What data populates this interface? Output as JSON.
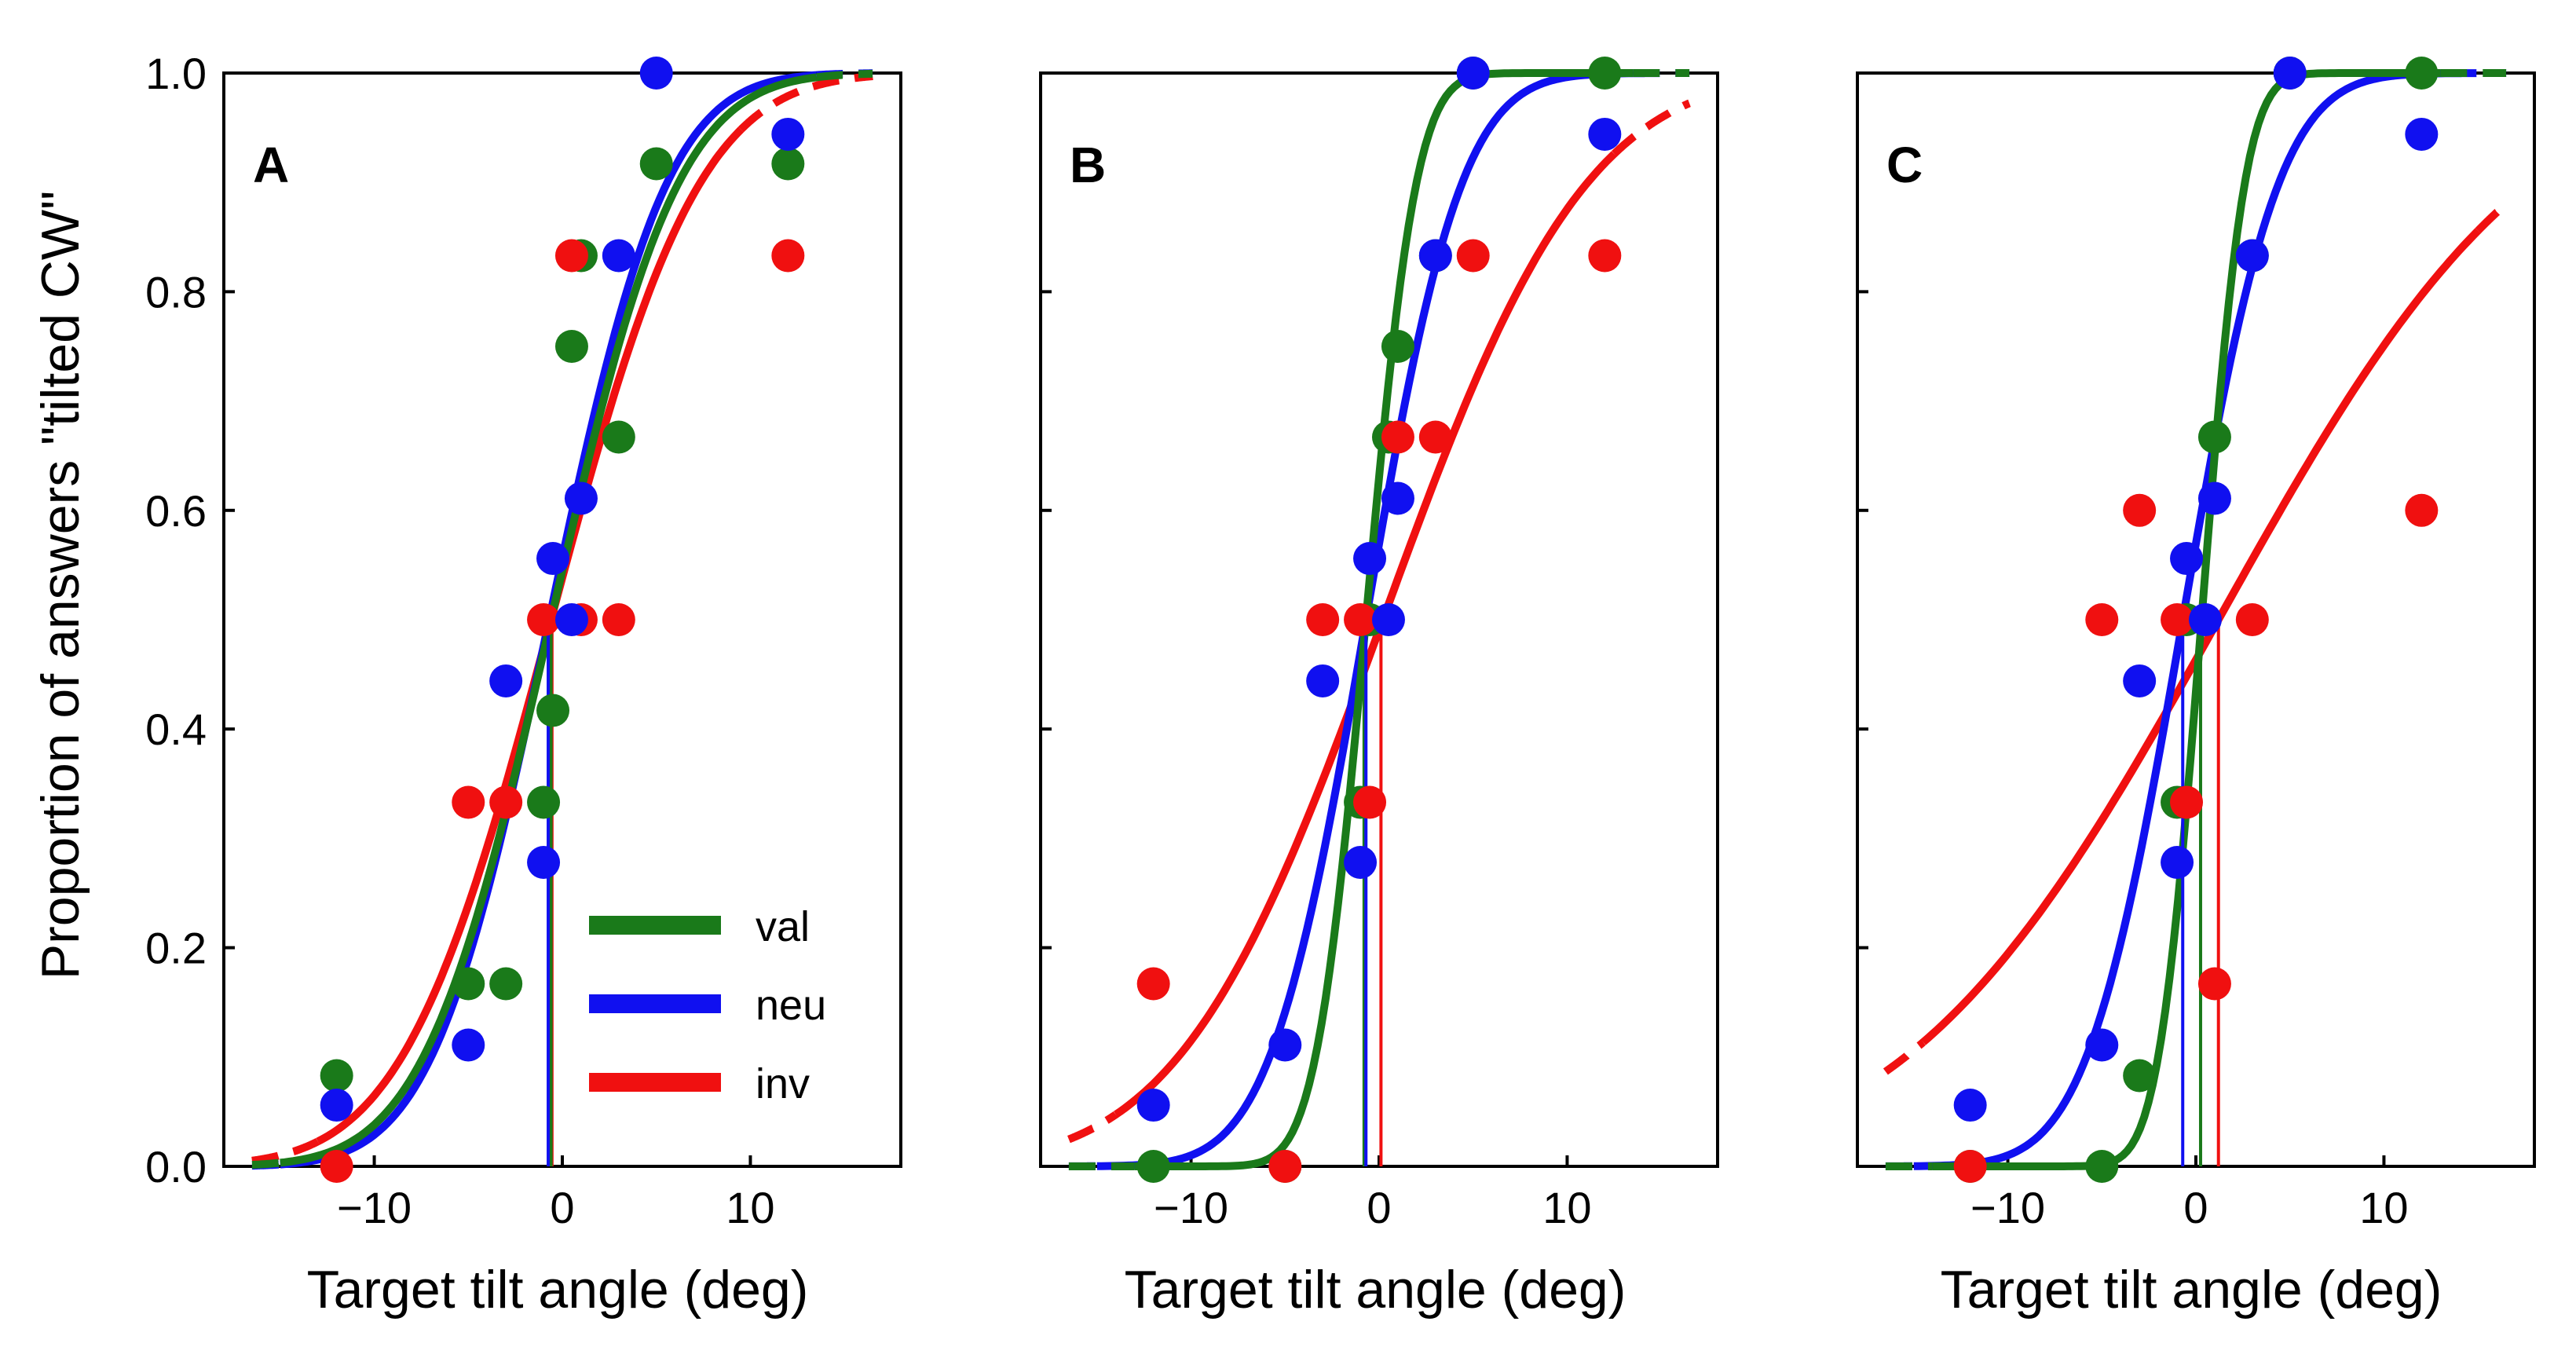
{
  "chart_data": {
    "type": "scatter",
    "ylabel": "Proportion of answers \"tilted CW\"",
    "xlabel": "Target tilt angle (deg)",
    "xlim": [
      -18,
      18
    ],
    "ylim": [
      0.0,
      1.0
    ],
    "x_ticks": [
      -10,
      0,
      10
    ],
    "x_tick_labels": [
      "−10",
      "0",
      "10"
    ],
    "y_ticks": [
      0.0,
      0.2,
      0.4,
      0.6,
      0.8,
      1.0
    ],
    "y_tick_labels": [
      "0.0",
      "0.2",
      "0.4",
      "0.6",
      "0.8",
      "1.0"
    ],
    "grid": false,
    "legend": {
      "placement": "lower-right",
      "panel": "A",
      "entries": [
        {
          "label": "val",
          "color": "#1a7a1a"
        },
        {
          "label": "neu",
          "color": "#1010f0"
        },
        {
          "label": "inv",
          "color": "#f01010"
        }
      ]
    },
    "colors": {
      "val": "#1a7a1a",
      "neu": "#1010f0",
      "inv": "#f01010"
    },
    "curve_range": [
      -16.5,
      16.5
    ],
    "panels": [
      {
        "letter": "A",
        "series": [
          {
            "name": "val",
            "points": [
              [
                -12,
                0.083
              ],
              [
                -5,
                0.167
              ],
              [
                -3,
                0.167
              ],
              [
                -1,
                0.333
              ],
              [
                -0.5,
                0.417
              ],
              [
                0.5,
                0.75
              ],
              [
                1,
                0.833
              ],
              [
                3,
                0.667
              ],
              [
                5,
                0.917
              ],
              [
                12,
                0.917
              ]
            ],
            "fit": {
              "mu": -0.6,
              "sigma": 5.3,
              "solid_range": [
                -15,
                13.5
              ]
            }
          },
          {
            "name": "neu",
            "points": [
              [
                -12,
                0.056
              ],
              [
                -5,
                0.111
              ],
              [
                -3,
                0.444
              ],
              [
                -1,
                0.278
              ],
              [
                -0.5,
                0.556
              ],
              [
                0.5,
                0.5
              ],
              [
                1,
                0.611
              ],
              [
                3,
                0.833
              ],
              [
                5,
                1.0
              ],
              [
                12,
                0.944
              ]
            ],
            "fit": {
              "mu": -0.7,
              "sigma": 4.9,
              "solid_range": [
                -15,
                13.5
              ]
            }
          },
          {
            "name": "inv",
            "points": [
              [
                -12,
                0.0
              ],
              [
                -5,
                0.333
              ],
              [
                -3,
                0.333
              ],
              [
                -1,
                0.5
              ],
              [
                0.5,
                0.833
              ],
              [
                1,
                0.5
              ],
              [
                3,
                0.5
              ],
              [
                12,
                0.833
              ]
            ],
            "fit": {
              "mu": -0.6,
              "sigma": 6.2,
              "solid_range": [
                -13,
                9.5
              ]
            }
          }
        ],
        "thresholds": [
          {
            "name": "inv",
            "x": -0.55
          },
          {
            "name": "val",
            "x": -0.6
          },
          {
            "name": "neu",
            "x": -0.75
          }
        ]
      },
      {
        "letter": "B",
        "series": [
          {
            "name": "val",
            "points": [
              [
                -12,
                0.0
              ],
              [
                -5,
                0.0
              ],
              [
                -1,
                0.333
              ],
              [
                -0.5,
                0.5
              ],
              [
                0.5,
                0.667
              ],
              [
                1,
                0.75
              ],
              [
                3,
                0.833
              ],
              [
                5,
                1.0
              ],
              [
                12,
                1.0
              ]
            ],
            "fit": {
              "mu": -0.7,
              "sigma": 2.1,
              "solid_range": [
                -13,
                13.5
              ]
            }
          },
          {
            "name": "neu",
            "points": [
              [
                -12,
                0.056
              ],
              [
                -5,
                0.111
              ],
              [
                -3,
                0.444
              ],
              [
                -1,
                0.278
              ],
              [
                -0.5,
                0.556
              ],
              [
                0.5,
                0.5
              ],
              [
                1,
                0.611
              ],
              [
                3,
                0.833
              ],
              [
                5,
                1.0
              ],
              [
                12,
                0.944
              ]
            ],
            "fit": {
              "mu": -0.7,
              "sigma": 4.0,
              "solid_range": [
                -15,
                13.5
              ]
            }
          },
          {
            "name": "inv",
            "points": [
              [
                -12,
                0.167
              ],
              [
                -5,
                0.0
              ],
              [
                -3,
                0.5
              ],
              [
                -1,
                0.5
              ],
              [
                -0.5,
                0.333
              ],
              [
                1,
                0.667
              ],
              [
                3,
                0.667
              ],
              [
                5,
                0.833
              ],
              [
                12,
                0.833
              ]
            ],
            "fit": {
              "mu": 0.2,
              "sigma": 8.5,
              "solid_range": [
                -14,
                12.5
              ]
            }
          }
        ],
        "thresholds": [
          {
            "name": "val",
            "x": -0.8
          },
          {
            "name": "neu",
            "x": -0.7
          },
          {
            "name": "inv",
            "x": 0.1
          }
        ]
      },
      {
        "letter": "C",
        "series": [
          {
            "name": "val",
            "points": [
              [
                -12,
                0.0
              ],
              [
                -5,
                0.0
              ],
              [
                -3,
                0.083
              ],
              [
                -1,
                0.333
              ],
              [
                -0.5,
                0.5
              ],
              [
                1,
                0.667
              ],
              [
                3,
                0.833
              ],
              [
                5,
                1.0
              ],
              [
                12,
                1.0
              ]
            ],
            "fit": {
              "mu": 0.3,
              "sigma": 1.8,
              "solid_range": [
                -14,
                13
              ]
            }
          },
          {
            "name": "neu",
            "points": [
              [
                -12,
                0.056
              ],
              [
                -5,
                0.111
              ],
              [
                -3,
                0.444
              ],
              [
                -1,
                0.278
              ],
              [
                -0.5,
                0.556
              ],
              [
                0.5,
                0.5
              ],
              [
                1,
                0.611
              ],
              [
                3,
                0.833
              ],
              [
                5,
                1.0
              ],
              [
                12,
                0.944
              ]
            ],
            "fit": {
              "mu": -0.7,
              "sigma": 4.0,
              "solid_range": [
                -15,
                13.5
              ]
            }
          },
          {
            "name": "inv",
            "points": [
              [
                -12,
                0.0
              ],
              [
                -5,
                0.5
              ],
              [
                -3,
                0.6
              ],
              [
                -1,
                0.5
              ],
              [
                -0.5,
                0.333
              ],
              [
                1,
                0.167
              ],
              [
                3,
                0.5
              ],
              [
                12,
                0.6
              ]
            ],
            "fit": {
              "mu": 1.2,
              "sigma": 13.0,
              "solid_range": [
                -14.5,
                15
              ]
            }
          }
        ],
        "thresholds": [
          {
            "name": "val",
            "x": 0.25
          },
          {
            "name": "neu",
            "x": -0.7
          },
          {
            "name": "inv",
            "x": 1.2
          }
        ]
      }
    ]
  }
}
